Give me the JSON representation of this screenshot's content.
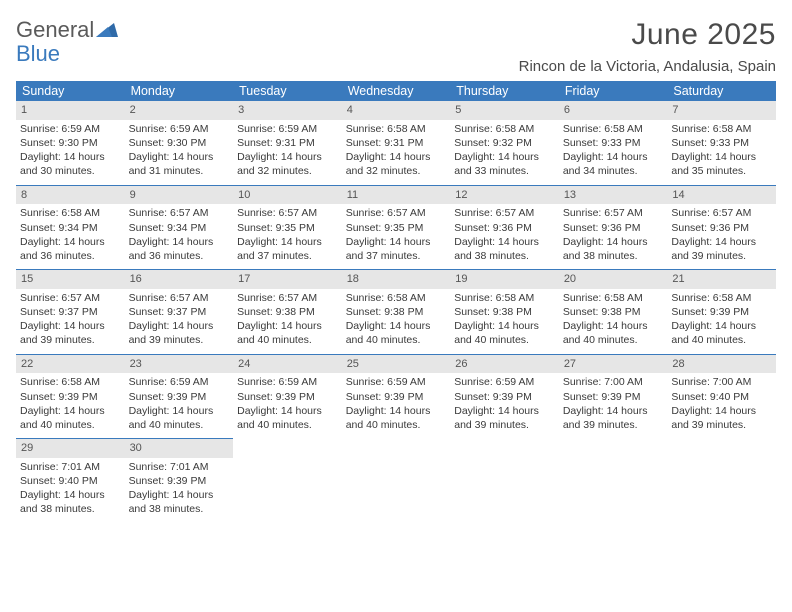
{
  "brand": {
    "word1": "General",
    "word2": "Blue"
  },
  "title": "June 2025",
  "location": "Rincon de la Victoria, Andalusia, Spain",
  "colors": {
    "header_bg": "#3a7abd",
    "header_text": "#ffffff",
    "daynum_bg": "#e6e6e6",
    "daynum_text": "#555555",
    "border": "#3a7abd",
    "body_text": "#3a3a3a"
  },
  "weekdays": [
    "Sunday",
    "Monday",
    "Tuesday",
    "Wednesday",
    "Thursday",
    "Friday",
    "Saturday"
  ],
  "weeks": [
    [
      {
        "n": "1",
        "sr": "6:59 AM",
        "ss": "9:30 PM",
        "dl": "14 hours and 30 minutes."
      },
      {
        "n": "2",
        "sr": "6:59 AM",
        "ss": "9:30 PM",
        "dl": "14 hours and 31 minutes."
      },
      {
        "n": "3",
        "sr": "6:59 AM",
        "ss": "9:31 PM",
        "dl": "14 hours and 32 minutes."
      },
      {
        "n": "4",
        "sr": "6:58 AM",
        "ss": "9:31 PM",
        "dl": "14 hours and 32 minutes."
      },
      {
        "n": "5",
        "sr": "6:58 AM",
        "ss": "9:32 PM",
        "dl": "14 hours and 33 minutes."
      },
      {
        "n": "6",
        "sr": "6:58 AM",
        "ss": "9:33 PM",
        "dl": "14 hours and 34 minutes."
      },
      {
        "n": "7",
        "sr": "6:58 AM",
        "ss": "9:33 PM",
        "dl": "14 hours and 35 minutes."
      }
    ],
    [
      {
        "n": "8",
        "sr": "6:58 AM",
        "ss": "9:34 PM",
        "dl": "14 hours and 36 minutes."
      },
      {
        "n": "9",
        "sr": "6:57 AM",
        "ss": "9:34 PM",
        "dl": "14 hours and 36 minutes."
      },
      {
        "n": "10",
        "sr": "6:57 AM",
        "ss": "9:35 PM",
        "dl": "14 hours and 37 minutes."
      },
      {
        "n": "11",
        "sr": "6:57 AM",
        "ss": "9:35 PM",
        "dl": "14 hours and 37 minutes."
      },
      {
        "n": "12",
        "sr": "6:57 AM",
        "ss": "9:36 PM",
        "dl": "14 hours and 38 minutes."
      },
      {
        "n": "13",
        "sr": "6:57 AM",
        "ss": "9:36 PM",
        "dl": "14 hours and 38 minutes."
      },
      {
        "n": "14",
        "sr": "6:57 AM",
        "ss": "9:36 PM",
        "dl": "14 hours and 39 minutes."
      }
    ],
    [
      {
        "n": "15",
        "sr": "6:57 AM",
        "ss": "9:37 PM",
        "dl": "14 hours and 39 minutes."
      },
      {
        "n": "16",
        "sr": "6:57 AM",
        "ss": "9:37 PM",
        "dl": "14 hours and 39 minutes."
      },
      {
        "n": "17",
        "sr": "6:57 AM",
        "ss": "9:38 PM",
        "dl": "14 hours and 40 minutes."
      },
      {
        "n": "18",
        "sr": "6:58 AM",
        "ss": "9:38 PM",
        "dl": "14 hours and 40 minutes."
      },
      {
        "n": "19",
        "sr": "6:58 AM",
        "ss": "9:38 PM",
        "dl": "14 hours and 40 minutes."
      },
      {
        "n": "20",
        "sr": "6:58 AM",
        "ss": "9:38 PM",
        "dl": "14 hours and 40 minutes."
      },
      {
        "n": "21",
        "sr": "6:58 AM",
        "ss": "9:39 PM",
        "dl": "14 hours and 40 minutes."
      }
    ],
    [
      {
        "n": "22",
        "sr": "6:58 AM",
        "ss": "9:39 PM",
        "dl": "14 hours and 40 minutes."
      },
      {
        "n": "23",
        "sr": "6:59 AM",
        "ss": "9:39 PM",
        "dl": "14 hours and 40 minutes."
      },
      {
        "n": "24",
        "sr": "6:59 AM",
        "ss": "9:39 PM",
        "dl": "14 hours and 40 minutes."
      },
      {
        "n": "25",
        "sr": "6:59 AM",
        "ss": "9:39 PM",
        "dl": "14 hours and 40 minutes."
      },
      {
        "n": "26",
        "sr": "6:59 AM",
        "ss": "9:39 PM",
        "dl": "14 hours and 39 minutes."
      },
      {
        "n": "27",
        "sr": "7:00 AM",
        "ss": "9:39 PM",
        "dl": "14 hours and 39 minutes."
      },
      {
        "n": "28",
        "sr": "7:00 AM",
        "ss": "9:40 PM",
        "dl": "14 hours and 39 minutes."
      }
    ],
    [
      {
        "n": "29",
        "sr": "7:01 AM",
        "ss": "9:40 PM",
        "dl": "14 hours and 38 minutes."
      },
      {
        "n": "30",
        "sr": "7:01 AM",
        "ss": "9:39 PM",
        "dl": "14 hours and 38 minutes."
      },
      null,
      null,
      null,
      null,
      null
    ]
  ],
  "labels": {
    "sunrise": "Sunrise: ",
    "sunset": "Sunset: ",
    "daylight": "Daylight: "
  }
}
